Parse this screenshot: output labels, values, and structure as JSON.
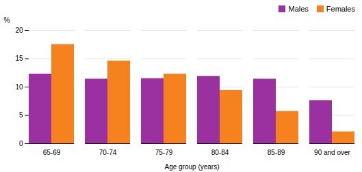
{
  "chart_data": {
    "type": "bar",
    "categories": [
      "65-69",
      "70-74",
      "75-79",
      "80-84",
      "85-89",
      "90 and over"
    ],
    "series": [
      {
        "name": "Males",
        "color": "#9B30A0",
        "values": [
          12.3,
          11.4,
          11.5,
          11.9,
          11.4,
          7.6
        ]
      },
      {
        "name": "Females",
        "color": "#F5821F",
        "values": [
          17.5,
          14.6,
          12.3,
          9.4,
          5.7,
          2.1
        ]
      }
    ],
    "xlabel": "Age group (years)",
    "ylabel": "%",
    "ylim": [
      0,
      20
    ],
    "yticks": [
      0,
      5,
      10,
      15,
      20
    ],
    "grid": true,
    "legend": "upper right"
  }
}
